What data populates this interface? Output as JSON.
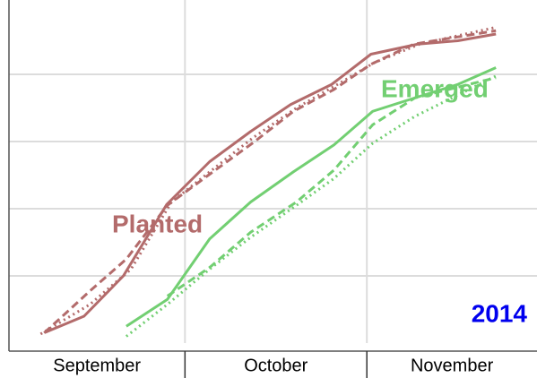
{
  "chart_data": {
    "type": "line",
    "categories": [
      "September",
      "October",
      "November"
    ],
    "xlim": [
      0,
      90
    ],
    "xticks": [
      30,
      61
    ],
    "ylim": [
      0,
      100
    ],
    "yticks": [
      20,
      40,
      60,
      80
    ],
    "grid": true,
    "series": [
      {
        "color": "#b36b6b",
        "dash": "solid",
        "x": [
          6.2,
          12.8,
          19.5,
          26.9,
          34.2,
          41.2,
          48,
          55,
          61.7,
          69.7,
          76.5,
          83
        ],
        "values": [
          3.2,
          8,
          20,
          41.3,
          54,
          63,
          71,
          77,
          86,
          89,
          90,
          92
        ]
      },
      {
        "color": "#b36b6b",
        "dash": "dashed",
        "x": [
          6,
          13.8,
          20,
          27,
          34,
          41.5,
          48.5,
          55.4,
          61.7,
          69,
          83
        ],
        "values": [
          3,
          15.5,
          25,
          41,
          50,
          59.5,
          69,
          75.5,
          83,
          89,
          93
        ]
      },
      {
        "color": "#b36b6b",
        "dash": "dotted",
        "x": [
          5.4,
          13.8,
          20.8,
          27.7,
          34.6,
          41.5,
          49,
          56,
          62.3,
          70,
          83
        ],
        "values": [
          2.7,
          11.5,
          22,
          42,
          51.5,
          61,
          70,
          77,
          83.5,
          89,
          94
        ]
      },
      {
        "color": "#72cf72",
        "dash": "solid",
        "x": [
          20,
          27,
          34.2,
          41.2,
          48.5,
          55.4,
          62,
          69.2,
          76.5,
          83
        ],
        "values": [
          5,
          13,
          31,
          42,
          51,
          59,
          69,
          73,
          77,
          82
        ]
      },
      {
        "color": "#72cf72",
        "dash": "dashed",
        "x": [
          27,
          34.2,
          41.2,
          49,
          55.4,
          62,
          69.2,
          83
        ],
        "values": [
          14,
          22.5,
          33,
          42,
          51.5,
          65,
          73,
          79
        ]
      },
      {
        "color": "#72cf72",
        "dash": "dotted",
        "x": [
          20,
          27,
          34.2,
          41.2,
          49,
          55.4,
          62,
          69.2,
          83
        ],
        "values": [
          2,
          11.5,
          22,
          31.5,
          41,
          49,
          59.5,
          67.5,
          79.5
        ]
      }
    ],
    "annotations": [
      {
        "text": "Planted",
        "color": "#b36b6b"
      },
      {
        "text": "Emerged",
        "color": "#72cf72"
      },
      {
        "text": "2014",
        "color": "#0000ee"
      }
    ]
  }
}
